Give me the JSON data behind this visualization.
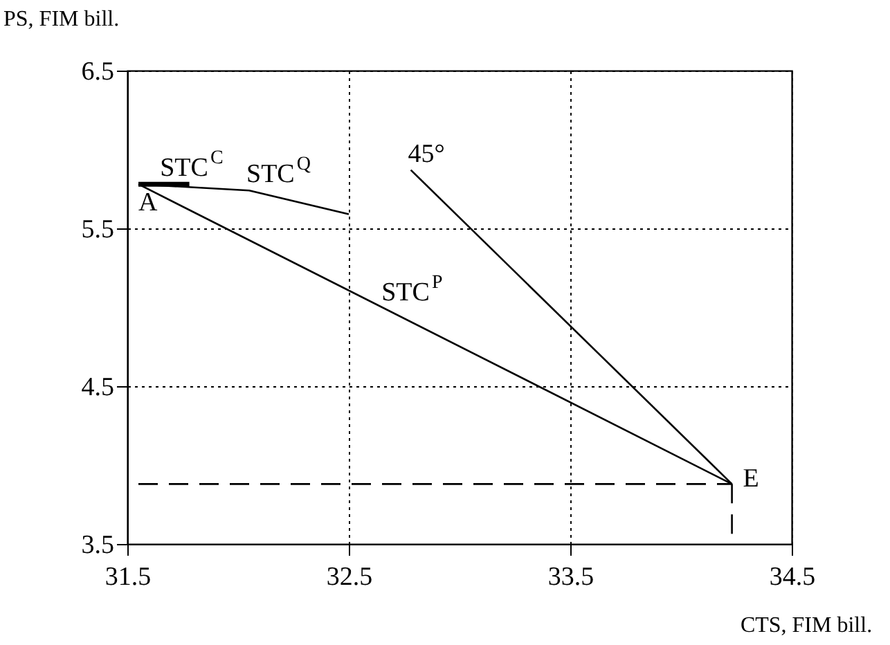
{
  "chart_data": {
    "type": "line",
    "xlabel": "CTS, FIM bill.",
    "ylabel": "PS, FIM bill.",
    "xlim": [
      31.5,
      34.5
    ],
    "xticks": [
      31.5,
      32.5,
      33.5,
      34.5
    ],
    "ylim": [
      3.5,
      6.5
    ],
    "yticks": [
      3.5,
      4.5,
      5.5,
      6.5
    ],
    "grid": true,
    "series": [
      {
        "color": "#000000",
        "x": [
          31.55,
          31.78
        ],
        "values": [
          5.78,
          5.78
        ]
      },
      {
        "color": "#000000",
        "x": [
          31.55,
          32.05,
          32.5
        ],
        "values": [
          5.78,
          5.74,
          5.59
        ]
      },
      {
        "color": "#000000",
        "x": [
          31.55,
          34.23
        ],
        "values": [
          5.78,
          3.88
        ]
      },
      {
        "color": "#000000",
        "x": [
          32.78,
          34.23
        ],
        "values": [
          5.87,
          3.88
        ]
      },
      {
        "color": "#000000",
        "x": [
          31.55,
          34.23
        ],
        "values": [
          3.88,
          3.88
        ],
        "line_style": "dashed"
      },
      {
        "color": "#000000",
        "x": [
          34.23,
          34.23
        ],
        "values": [
          3.88,
          3.5
        ],
        "line_style": "dashed"
      }
    ],
    "annotations": [
      {
        "text": "STC$^{C}$",
        "x": 31.66,
        "y": 5.78
      },
      {
        "text": "STC$^{Q}$",
        "x": 32.05,
        "y": 5.74
      },
      {
        "text": "STC$^{P}$",
        "x": 32.66,
        "y": 4.99
      },
      {
        "text": "45°",
        "x": 32.78,
        "y": 5.87
      },
      {
        "text": "A",
        "x": 31.55,
        "y": 5.78
      },
      {
        "text": "E",
        "x": 34.23,
        "y": 3.88
      }
    ]
  }
}
